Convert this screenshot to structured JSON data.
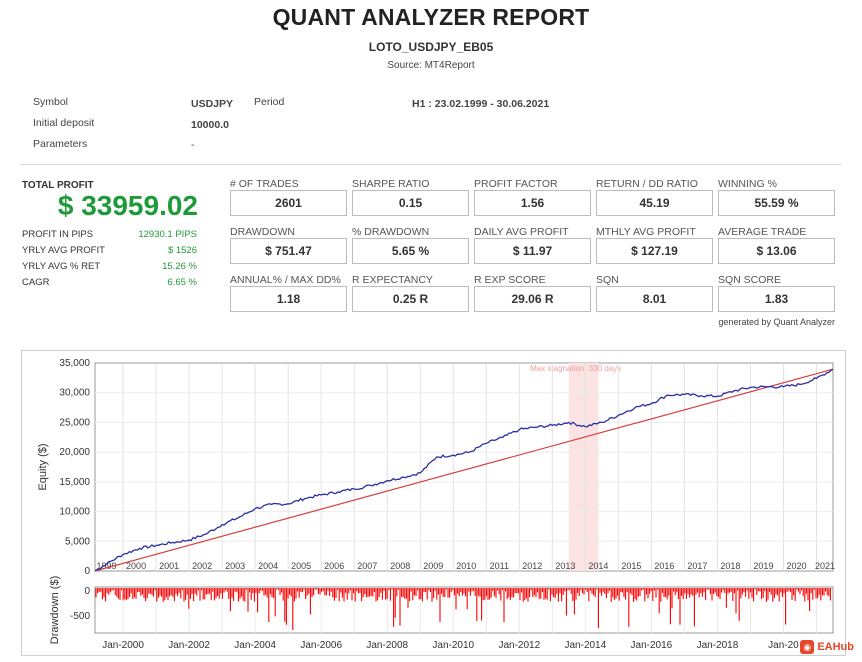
{
  "report": {
    "title": "QUANT ANALYZER REPORT",
    "strategy": "LOTO_USDJPY_EB05",
    "source": "Source: MT4Report"
  },
  "header": {
    "symbol_label": "Symbol",
    "symbol_value": "USDJPY",
    "period_label": "Period",
    "period_value": "H1 : 23.02.1999 - 30.06.2021",
    "deposit_label": "Initial deposit",
    "deposit_value": "10000.0",
    "params_label": "Parameters",
    "params_value": "-"
  },
  "total_profit": {
    "label": "TOTAL PROFIT",
    "value": "$ 33959.02"
  },
  "left_stats": [
    {
      "label": "PROFIT IN PIPS",
      "value": "12930.1 PIPS"
    },
    {
      "label": "YRLY AVG PROFIT",
      "value": "$ 1526"
    },
    {
      "label": "YRLY AVG % RET",
      "value": "15.26 %"
    },
    {
      "label": "CAGR",
      "value": "6.65 %"
    }
  ],
  "stats": [
    {
      "label": "# OF TRADES",
      "value": "2601"
    },
    {
      "label": "SHARPE RATIO",
      "value": "0.15"
    },
    {
      "label": "PROFIT FACTOR",
      "value": "1.56"
    },
    {
      "label": "RETURN / DD RATIO",
      "value": "45.19"
    },
    {
      "label": "WINNING %",
      "value": "55.59 %"
    },
    {
      "label": "DRAWDOWN",
      "value": "$ 751.47"
    },
    {
      "label": "% DRAWDOWN",
      "value": "5.65 %"
    },
    {
      "label": "DAILY AVG PROFIT",
      "value": "$ 11.97"
    },
    {
      "label": "MTHLY AVG PROFIT",
      "value": "$ 127.19"
    },
    {
      "label": "AVERAGE TRADE",
      "value": "$ 13.06"
    },
    {
      "label": "ANNUAL% / MAX DD%",
      "value": "1.18"
    },
    {
      "label": "R EXPECTANCY",
      "value": "0.25 R"
    },
    {
      "label": "R EXP SCORE",
      "value": "29.06 R"
    },
    {
      "label": "SQN",
      "value": "8.01"
    },
    {
      "label": "SQN SCORE",
      "value": "1.83"
    }
  ],
  "generated_by": "generated by Quant Analyzer",
  "chart_data": {
    "type": "line",
    "ylabel": "Equity ($)",
    "ylim": [
      0,
      35000
    ],
    "yticks": [
      "0",
      "5,000",
      "10,000",
      "15,000",
      "20,000",
      "25,000",
      "30,000",
      "35,000"
    ],
    "year_labels": [
      "1999",
      "2000",
      "2001",
      "2002",
      "2003",
      "2004",
      "2005",
      "2006",
      "2007",
      "2008",
      "2009",
      "2010",
      "2011",
      "2012",
      "2013",
      "2014",
      "2015",
      "2016",
      "2017",
      "2018",
      "2019",
      "2020",
      "2021"
    ],
    "stagnation_label": "Max stagnation: 330 days",
    "stagnation_range": [
      2013.5,
      2014.4
    ],
    "series": [
      {
        "color": "#2b2fa0",
        "x": [
          1999.15,
          1999.5,
          2000.0,
          2000.5,
          2001.0,
          2001.5,
          2002.0,
          2002.5,
          2003.0,
          2003.5,
          2004.0,
          2004.5,
          2005.0,
          2005.5,
          2006.0,
          2006.5,
          2007.0,
          2007.5,
          2008.0,
          2008.5,
          2009.0,
          2009.5,
          2010.0,
          2010.5,
          2011.0,
          2011.5,
          2012.0,
          2012.5,
          2013.0,
          2013.5,
          2014.0,
          2014.5,
          2015.0,
          2015.5,
          2016.0,
          2016.5,
          2017.0,
          2017.5,
          2018.0,
          2018.5,
          2019.0,
          2019.5,
          2020.0,
          2020.5,
          2021.0,
          2021.5
        ],
        "y": [
          0,
          1200,
          2800,
          3800,
          4300,
          4800,
          5200,
          6200,
          7800,
          9000,
          10500,
          11200,
          11300,
          12200,
          12800,
          13300,
          13800,
          14400,
          15200,
          15800,
          16500,
          19200,
          19500,
          20000,
          21500,
          22500,
          23800,
          24200,
          24500,
          25000,
          24300,
          25000,
          26200,
          27500,
          28200,
          29600,
          29700,
          29500,
          29400,
          30300,
          30900,
          31000,
          31000,
          31400,
          32400,
          33959
        ]
      },
      {
        "color": "#d64040",
        "x": [
          1999.15,
          2021.5
        ],
        "y": [
          0,
          33959
        ]
      }
    ],
    "drawdown": {
      "ylabel": "Drawdown ($)",
      "yticks": [
        "0",
        "-500"
      ],
      "ylim": [
        -800,
        0
      ],
      "color": "#ff0000",
      "x_labels": [
        "Jan-2000",
        "Jan-2002",
        "Jan-2004",
        "Jan-2006",
        "Jan-2008",
        "Jan-2010",
        "Jan-2012",
        "Jan-2014",
        "Jan-2016",
        "Jan-2018",
        "Jan-20"
      ]
    }
  },
  "watermark": "EAHub"
}
